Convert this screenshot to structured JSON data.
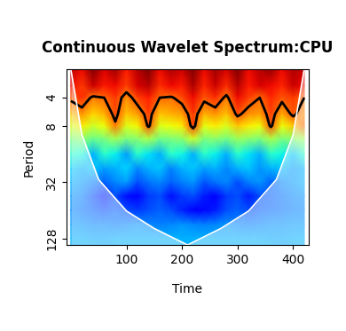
{
  "chart_data": {
    "type": "heatmap",
    "title": "Continuous Wavelet Spectrum:CPU",
    "x_label": "Time",
    "y_label": "Period",
    "log": "y",
    "xlim": [
      -8,
      428
    ],
    "ylim": [
      150,
      2
    ],
    "xticks": [
      100,
      200,
      300,
      400
    ],
    "yticks": [
      4,
      8,
      32,
      128
    ],
    "x": [
      0,
      20,
      40,
      60,
      80,
      100,
      120,
      140,
      160,
      180,
      200,
      220,
      240,
      260,
      280,
      300,
      320,
      340,
      360,
      380,
      400,
      420
    ],
    "y": [
      2,
      3,
      4,
      6,
      8,
      11,
      16,
      23,
      32,
      45,
      64,
      91,
      128,
      150
    ],
    "cells": [
      [
        0.95,
        0.9,
        1.0,
        0.92,
        0.97,
        0.88,
        0.95,
        1.0,
        0.9,
        0.96,
        0.93,
        1.0,
        0.9,
        0.97,
        0.92,
        1.0,
        0.9,
        0.95,
        0.98,
        0.9,
        0.96,
        0.93
      ],
      [
        0.9,
        0.85,
        0.93,
        0.88,
        0.9,
        0.84,
        0.92,
        0.95,
        0.86,
        0.9,
        0.88,
        0.96,
        0.87,
        0.93,
        0.86,
        0.95,
        0.88,
        0.92,
        0.9,
        0.87,
        0.93,
        0.9
      ],
      [
        0.82,
        0.86,
        0.78,
        0.8,
        0.85,
        0.76,
        0.84,
        0.88,
        0.8,
        0.79,
        0.83,
        0.9,
        0.82,
        0.86,
        0.78,
        0.9,
        0.84,
        0.8,
        0.87,
        0.82,
        0.85,
        0.8
      ],
      [
        0.7,
        0.75,
        0.68,
        0.72,
        0.83,
        0.7,
        0.74,
        0.84,
        0.7,
        0.72,
        0.74,
        0.85,
        0.72,
        0.75,
        0.7,
        0.82,
        0.76,
        0.74,
        0.84,
        0.73,
        0.82,
        0.75
      ],
      [
        0.62,
        0.66,
        0.6,
        0.64,
        0.78,
        0.62,
        0.65,
        0.82,
        0.62,
        0.64,
        0.66,
        0.84,
        0.63,
        0.66,
        0.62,
        0.7,
        0.66,
        0.64,
        0.82,
        0.64,
        0.7,
        0.8
      ],
      [
        0.5,
        0.52,
        0.48,
        0.5,
        0.55,
        0.5,
        0.52,
        0.56,
        0.49,
        0.5,
        0.52,
        0.6,
        0.5,
        0.52,
        0.49,
        0.54,
        0.52,
        0.5,
        0.56,
        0.5,
        0.52,
        0.55
      ],
      [
        0.4,
        0.38,
        0.3,
        0.4,
        0.36,
        0.28,
        0.4,
        0.35,
        0.3,
        0.4,
        0.37,
        0.3,
        0.4,
        0.36,
        0.3,
        0.4,
        0.35,
        0.3,
        0.4,
        0.37,
        0.32,
        0.4
      ],
      [
        0.33,
        0.3,
        0.32,
        0.28,
        0.3,
        0.33,
        0.26,
        0.3,
        0.32,
        0.25,
        0.3,
        0.32,
        0.28,
        0.3,
        0.26,
        0.3,
        0.32,
        0.27,
        0.3,
        0.31,
        0.28,
        0.3
      ],
      [
        0.3,
        0.28,
        0.25,
        0.22,
        0.26,
        0.28,
        0.2,
        0.24,
        0.26,
        0.22,
        0.25,
        0.27,
        0.21,
        0.24,
        0.26,
        0.2,
        0.25,
        0.27,
        0.22,
        0.26,
        0.28,
        0.3
      ],
      [
        0.27,
        0.25,
        0.2,
        0.15,
        0.2,
        0.14,
        0.12,
        0.18,
        0.2,
        0.14,
        0.18,
        0.2,
        0.15,
        0.12,
        0.18,
        0.2,
        0.15,
        0.2,
        0.22,
        0.24,
        0.26,
        0.27
      ],
      [
        0.26,
        0.24,
        0.22,
        0.2,
        0.22,
        0.2,
        0.18,
        0.2,
        0.22,
        0.2,
        0.16,
        0.12,
        0.13,
        0.15,
        0.2,
        0.22,
        0.2,
        0.22,
        0.23,
        0.24,
        0.25,
        0.26
      ],
      [
        0.28,
        0.27,
        0.26,
        0.26,
        0.25,
        0.26,
        0.27,
        0.26,
        0.25,
        0.26,
        0.27,
        0.26,
        0.25,
        0.26,
        0.27,
        0.26,
        0.25,
        0.26,
        0.27,
        0.27,
        0.28,
        0.28
      ],
      [
        0.3,
        0.3,
        0.29,
        0.29,
        0.3,
        0.3,
        0.3,
        0.3,
        0.3,
        0.3,
        0.3,
        0.3,
        0.3,
        0.3,
        0.3,
        0.3,
        0.3,
        0.3,
        0.29,
        0.29,
        0.3,
        0.3
      ],
      [
        0.3,
        0.3,
        0.3,
        0.29,
        0.3,
        0.3,
        0.3,
        0.3,
        0.3,
        0.3,
        0.3,
        0.3,
        0.3,
        0.3,
        0.3,
        0.3,
        0.3,
        0.3,
        0.3,
        0.29,
        0.3,
        0.3
      ]
    ],
    "color_range": [
      0,
      1
    ],
    "contour_level": 0.8,
    "coi": {
      "x": [
        0,
        20,
        50,
        100,
        150,
        210,
        270,
        320,
        370,
        400,
        420
      ],
      "y": [
        2,
        10,
        30,
        65,
        100,
        150,
        100,
        65,
        30,
        10,
        2
      ]
    }
  }
}
